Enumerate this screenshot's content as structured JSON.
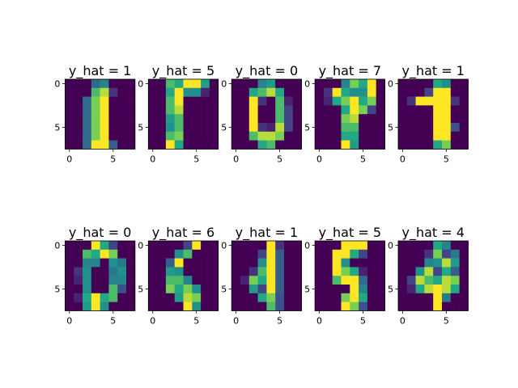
{
  "chart_data": [
    {
      "type": "heatmap",
      "title": "y_hat = 1",
      "xticks": [
        "0",
        "5"
      ],
      "yticks": [
        "0",
        "5"
      ],
      "grid": false,
      "values": [
        [
          0,
          0,
          0,
          7,
          9,
          0,
          0,
          0
        ],
        [
          0,
          0,
          0,
          13,
          15,
          3,
          0,
          0
        ],
        [
          0,
          0,
          7,
          14,
          16,
          0,
          0,
          0
        ],
        [
          0,
          0,
          7,
          14,
          16,
          0,
          0,
          0
        ],
        [
          0,
          0,
          7,
          14,
          16,
          0,
          0,
          0
        ],
        [
          0,
          0,
          7,
          14,
          16,
          0,
          0,
          0
        ],
        [
          0,
          0,
          7,
          14,
          16,
          0,
          0,
          0
        ],
        [
          0,
          0,
          7,
          16,
          16,
          6,
          0,
          0
        ]
      ]
    },
    {
      "type": "heatmap",
      "title": "y_hat = 5",
      "xticks": [
        "0",
        "5"
      ],
      "yticks": [
        "0",
        "5"
      ],
      "grid": false,
      "values": [
        [
          0,
          0,
          13,
          12,
          16,
          16,
          11,
          0
        ],
        [
          0,
          0,
          12,
          16,
          10,
          10,
          2,
          0
        ],
        [
          0,
          0,
          13,
          16,
          0,
          0,
          0,
          0
        ],
        [
          0,
          0,
          13,
          15,
          0,
          0,
          0,
          0
        ],
        [
          0,
          0,
          11,
          13,
          0,
          0,
          0,
          0
        ],
        [
          0,
          0,
          10,
          13,
          0,
          0,
          0,
          0
        ],
        [
          0,
          0,
          13,
          14,
          0,
          0,
          0,
          0
        ],
        [
          0,
          0,
          16,
          12,
          0,
          0,
          0,
          0
        ]
      ]
    },
    {
      "type": "heatmap",
      "title": "y_hat = 0",
      "xticks": [
        "0",
        "5"
      ],
      "yticks": [
        "0",
        "5"
      ],
      "grid": false,
      "values": [
        [
          0,
          0,
          0,
          9,
          11,
          0,
          0,
          0
        ],
        [
          0,
          0,
          12,
          13,
          15,
          12,
          0,
          0
        ],
        [
          0,
          0,
          16,
          3,
          0,
          13,
          2,
          0
        ],
        [
          0,
          0,
          16,
          0,
          0,
          13,
          4,
          0
        ],
        [
          0,
          0,
          16,
          0,
          0,
          13,
          4,
          0
        ],
        [
          0,
          0,
          16,
          3,
          2,
          15,
          4,
          0
        ],
        [
          0,
          0,
          13,
          15,
          15,
          14,
          0,
          0
        ],
        [
          0,
          0,
          0,
          12,
          13,
          0,
          0,
          0
        ]
      ]
    },
    {
      "type": "heatmap",
      "title": "y_hat = 7",
      "xticks": [
        "0",
        "5"
      ],
      "yticks": [
        "0",
        "5"
      ],
      "grid": false,
      "values": [
        [
          0,
          0,
          0,
          9,
          14,
          12,
          16,
          0
        ],
        [
          0,
          3,
          16,
          12,
          10,
          10,
          16,
          0
        ],
        [
          0,
          2,
          12,
          14,
          16,
          12,
          14,
          0
        ],
        [
          0,
          0,
          0,
          12,
          16,
          14,
          4,
          0
        ],
        [
          0,
          0,
          0,
          14,
          15,
          0,
          0,
          0
        ],
        [
          0,
          0,
          0,
          13,
          13,
          0,
          0,
          0
        ],
        [
          0,
          0,
          0,
          12,
          12,
          0,
          0,
          0
        ],
        [
          0,
          0,
          0,
          16,
          11,
          0,
          0,
          0
        ]
      ]
    },
    {
      "type": "heatmap",
      "title": "y_hat = 1",
      "xticks": [
        "0",
        "5"
      ],
      "yticks": [
        "0",
        "5"
      ],
      "grid": false,
      "values": [
        [
          0,
          0,
          0,
          0,
          12,
          10,
          0,
          0
        ],
        [
          0,
          0,
          0,
          4,
          16,
          16,
          0,
          0
        ],
        [
          0,
          3,
          16,
          16,
          16,
          16,
          3,
          0
        ],
        [
          0,
          0,
          0,
          0,
          16,
          16,
          0,
          0
        ],
        [
          0,
          0,
          0,
          0,
          16,
          16,
          0,
          0
        ],
        [
          0,
          0,
          0,
          0,
          16,
          16,
          5,
          0
        ],
        [
          0,
          0,
          0,
          0,
          16,
          16,
          0,
          0
        ],
        [
          0,
          0,
          0,
          0,
          12,
          14,
          0,
          0
        ]
      ]
    },
    {
      "type": "heatmap",
      "title": "y_hat = 0",
      "xticks": [
        "0",
        "5"
      ],
      "yticks": [
        "0",
        "5"
      ],
      "grid": false,
      "values": [
        [
          0,
          0,
          0,
          16,
          12,
          4,
          0,
          0
        ],
        [
          0,
          0,
          13,
          12,
          16,
          14,
          0,
          0
        ],
        [
          0,
          0,
          9,
          9,
          0,
          10,
          8,
          0
        ],
        [
          0,
          3,
          10,
          0,
          0,
          8,
          10,
          0
        ],
        [
          0,
          2,
          10,
          0,
          0,
          9,
          9,
          0
        ],
        [
          0,
          0,
          10,
          0,
          0,
          13,
          5,
          0
        ],
        [
          0,
          2,
          12,
          16,
          12,
          13,
          0,
          0
        ],
        [
          0,
          0,
          11,
          16,
          10,
          0,
          0,
          0
        ]
      ]
    },
    {
      "type": "heatmap",
      "title": "y_hat = 6",
      "xticks": [
        "0",
        "5"
      ],
      "yticks": [
        "0",
        "5"
      ],
      "grid": false,
      "values": [
        [
          0,
          0,
          0,
          0,
          4,
          16,
          0,
          0
        ],
        [
          0,
          0,
          0,
          10,
          13,
          0,
          0,
          0
        ],
        [
          0,
          0,
          6,
          16,
          0,
          0,
          0,
          0
        ],
        [
          0,
          0,
          11,
          10,
          0,
          0,
          0,
          0
        ],
        [
          0,
          0,
          13,
          13,
          9,
          0,
          0,
          0
        ],
        [
          0,
          0,
          14,
          12,
          14,
          10,
          0,
          0
        ],
        [
          0,
          0,
          0,
          11,
          15,
          14,
          0,
          0
        ],
        [
          0,
          0,
          0,
          0,
          16,
          10,
          0,
          0
        ]
      ]
    },
    {
      "type": "heatmap",
      "title": "y_hat = 1",
      "xticks": [
        "0",
        "5"
      ],
      "yticks": [
        "0",
        "5"
      ],
      "grid": false,
      "values": [
        [
          0,
          0,
          0,
          0,
          16,
          3,
          0,
          0
        ],
        [
          0,
          0,
          0,
          4,
          16,
          6,
          0,
          0
        ],
        [
          0,
          0,
          0,
          10,
          16,
          6,
          0,
          0
        ],
        [
          0,
          0,
          3,
          13,
          16,
          6,
          0,
          0
        ],
        [
          0,
          2,
          14,
          12,
          16,
          6,
          0,
          0
        ],
        [
          0,
          0,
          11,
          4,
          16,
          6,
          0,
          0
        ],
        [
          0,
          0,
          0,
          12,
          14,
          5,
          0,
          0
        ],
        [
          0,
          0,
          0,
          0,
          13,
          5,
          0,
          0
        ]
      ]
    },
    {
      "type": "heatmap",
      "title": "y_hat = 5",
      "xticks": [
        "0",
        "5"
      ],
      "yticks": [
        "0",
        "5"
      ],
      "grid": false,
      "values": [
        [
          0,
          0,
          0,
          16,
          16,
          16,
          0,
          0
        ],
        [
          0,
          0,
          16,
          16,
          12,
          4,
          0,
          0
        ],
        [
          0,
          0,
          16,
          10,
          0,
          0,
          0,
          0
        ],
        [
          0,
          0,
          16,
          14,
          12,
          2,
          0,
          0
        ],
        [
          0,
          0,
          13,
          16,
          16,
          7,
          0,
          0
        ],
        [
          0,
          0,
          0,
          0,
          16,
          9,
          0,
          0
        ],
        [
          0,
          0,
          0,
          14,
          16,
          12,
          0,
          0
        ],
        [
          0,
          0,
          0,
          16,
          14,
          5,
          0,
          0
        ]
      ]
    },
    {
      "type": "heatmap",
      "title": "y_hat = 4",
      "xticks": [
        "0",
        "5"
      ],
      "yticks": [
        "0",
        "5"
      ],
      "grid": false,
      "values": [
        [
          0,
          0,
          0,
          0,
          12,
          9,
          0,
          0
        ],
        [
          0,
          0,
          0,
          3,
          14,
          4,
          8,
          0
        ],
        [
          0,
          0,
          0,
          9,
          10,
          15,
          11,
          0
        ],
        [
          0,
          0,
          10,
          15,
          4,
          12,
          6,
          0
        ],
        [
          0,
          4,
          15,
          13,
          12,
          15,
          14,
          0
        ],
        [
          0,
          2,
          12,
          15,
          16,
          15,
          12,
          0
        ],
        [
          0,
          0,
          0,
          0,
          16,
          8,
          0,
          0
        ],
        [
          0,
          0,
          0,
          0,
          16,
          0,
          0,
          0
        ]
      ]
    }
  ]
}
